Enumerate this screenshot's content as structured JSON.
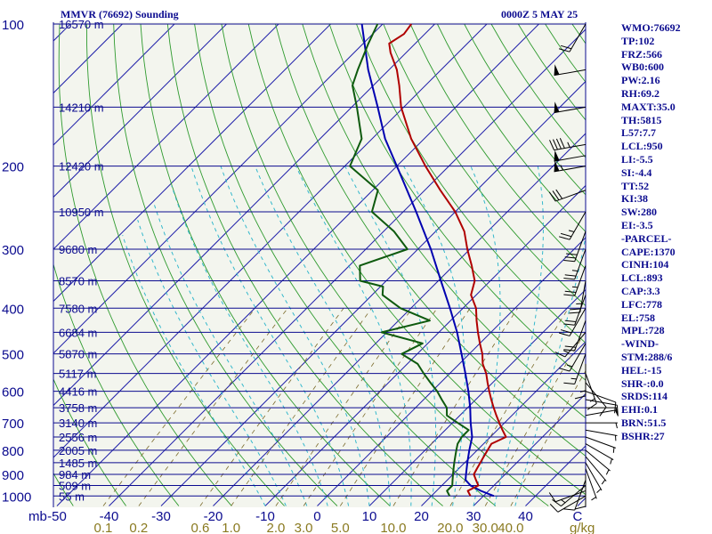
{
  "header": {
    "station": "MMVR (76692) Sounding",
    "time": "0000Z  5 MAY 25"
  },
  "indices": [
    "WMO:76692",
    "TP:102",
    "FRZ:566",
    "WB0:600",
    "PW:2.16",
    "RH:69.2",
    "MAXT:35.0",
    "TH:5815",
    "L57:7.7",
    "LCL:950",
    "LI:-5.5",
    "SI:-4.4",
    "TT:52",
    "KI:38",
    "SW:280",
    "EI:-3.5",
    "-PARCEL-",
    "CAPE:1370",
    "CINH:104",
    "LCL:893",
    "CAP:3.3",
    "LFC:778",
    "EL:758",
    "MPL:728",
    "-WIND-",
    "STM:288/6",
    "HEL:-15",
    "SHR-:0.0",
    "SRDS:114",
    "EHI:0.1",
    "BRN:51.5",
    "BSHR:27"
  ],
  "colors": {
    "text": "#0b0b8f",
    "isobar": "#0b0b8f",
    "isotherm": "#2222aa",
    "dry_adiabat": "#2e9a2e",
    "moist_adiabat": "#34b8cc",
    "mixing_ratio": "#7a6a2a",
    "mixing_label": "#8a7a20",
    "temperature": "#b00000",
    "dewpoint": "#0e5a0e",
    "parcel": "#0000b0",
    "background": "#f3f5ee",
    "wind": "#000000"
  },
  "chart_data": {
    "type": "skew-t",
    "pressure_ticks": [
      100,
      200,
      300,
      400,
      500,
      600,
      700,
      800,
      900,
      1000
    ],
    "height_labels": [
      {
        "p": 100,
        "h": "16570 m"
      },
      {
        "p": 150,
        "h": "14210 m"
      },
      {
        "p": 200,
        "h": "12420 m"
      },
      {
        "p": 250,
        "h": "10950 m"
      },
      {
        "p": 300,
        "h": "9680 m"
      },
      {
        "p": 350,
        "h": "8570 m"
      },
      {
        "p": 400,
        "h": "7580 m"
      },
      {
        "p": 450,
        "h": "6684 m"
      },
      {
        "p": 500,
        "h": "5870 m"
      },
      {
        "p": 550,
        "h": "5117 m"
      },
      {
        "p": 600,
        "h": "4416 m"
      },
      {
        "p": 650,
        "h": "3758 m"
      },
      {
        "p": 700,
        "h": "3140 m"
      },
      {
        "p": 750,
        "h": "2556 m"
      },
      {
        "p": 800,
        "h": "2005 m"
      },
      {
        "p": 850,
        "h": "1485 m"
      },
      {
        "p": 900,
        "h": "984 m"
      },
      {
        "p": 950,
        "h": "509 m"
      },
      {
        "p": 1000,
        "h": "55 m"
      }
    ],
    "xunit_left": "mb",
    "xunit_right": "g/kg",
    "temp_ticks": [
      "-50",
      "-40",
      "-30",
      "-20",
      "-10",
      "0",
      "10",
      "20",
      "30",
      "40",
      "C"
    ],
    "mixing_ratio_labels": [
      "0.1",
      "0.2",
      "0.6",
      "1.0",
      "2.0",
      "3.0",
      "5.0",
      "10.0",
      "20.0",
      "30.0",
      "40.0"
    ],
    "mixing_ratio_values": [
      0.1,
      0.2,
      0.6,
      1.0,
      2.0,
      3.0,
      5.0,
      10.0,
      20.0,
      30.0,
      40.0
    ],
    "temperature": [
      [
        1000,
        27.5
      ],
      [
        975,
        26.0
      ],
      [
        950,
        27.0
      ],
      [
        925,
        25.5
      ],
      [
        900,
        24.0
      ],
      [
        875,
        23.5
      ],
      [
        850,
        23.0
      ],
      [
        825,
        22.5
      ],
      [
        800,
        22.0
      ],
      [
        775,
        21.5
      ],
      [
        750,
        23.0
      ],
      [
        725,
        21.0
      ],
      [
        700,
        19.0
      ],
      [
        675,
        17.0
      ],
      [
        650,
        15.0
      ],
      [
        625,
        13.0
      ],
      [
        600,
        11.0
      ],
      [
        575,
        9.0
      ],
      [
        550,
        7.0
      ],
      [
        525,
        4.5
      ],
      [
        500,
        2.5
      ],
      [
        475,
        0.0
      ],
      [
        450,
        -2.5
      ],
      [
        425,
        -5.0
      ],
      [
        400,
        -7.5
      ],
      [
        375,
        -11.0
      ],
      [
        350,
        -13.0
      ],
      [
        325,
        -16.5
      ],
      [
        300,
        -20.5
      ],
      [
        275,
        -24.5
      ],
      [
        250,
        -30.0
      ],
      [
        225,
        -37.0
      ],
      [
        200,
        -44.5
      ],
      [
        175,
        -52.5
      ],
      [
        150,
        -60.5
      ],
      [
        135,
        -65.0
      ],
      [
        125,
        -68.5
      ],
      [
        115,
        -73.0
      ],
      [
        110,
        -75.0
      ],
      [
        105,
        -74.0
      ],
      [
        100,
        -74.5
      ]
    ],
    "dewpoint": [
      [
        1000,
        23.5
      ],
      [
        975,
        22.0
      ],
      [
        950,
        22.0
      ],
      [
        925,
        21.0
      ],
      [
        900,
        20.0
      ],
      [
        875,
        19.0
      ],
      [
        850,
        18.0
      ],
      [
        825,
        17.0
      ],
      [
        800,
        16.0
      ],
      [
        775,
        15.0
      ],
      [
        750,
        14.5
      ],
      [
        725,
        14.5
      ],
      [
        700,
        11.0
      ],
      [
        675,
        7.5
      ],
      [
        650,
        6.0
      ],
      [
        625,
        3.5
      ],
      [
        600,
        1.0
      ],
      [
        575,
        -2.0
      ],
      [
        550,
        -5.0
      ],
      [
        525,
        -8.0
      ],
      [
        500,
        -13.0
      ],
      [
        475,
        -11.0
      ],
      [
        450,
        -21.0
      ],
      [
        425,
        -14.0
      ],
      [
        400,
        -22.0
      ],
      [
        375,
        -28.0
      ],
      [
        360,
        -29.5
      ],
      [
        350,
        -35.0
      ],
      [
        325,
        -38.0
      ],
      [
        300,
        -32.0
      ],
      [
        275,
        -38.0
      ],
      [
        250,
        -46.0
      ],
      [
        225,
        -49.0
      ],
      [
        200,
        -59.0
      ],
      [
        175,
        -62.0
      ],
      [
        150,
        -69.0
      ],
      [
        135,
        -74.0
      ],
      [
        125,
        -76.0
      ],
      [
        110,
        -79.0
      ],
      [
        100,
        -81.0
      ]
    ],
    "parcel": [
      [
        1000,
        32.0
      ],
      [
        975,
        28.5
      ],
      [
        950,
        25.5
      ],
      [
        925,
        23.5
      ],
      [
        900,
        22.5
      ],
      [
        850,
        20.5
      ],
      [
        800,
        18.5
      ],
      [
        750,
        16.5
      ],
      [
        700,
        13.5
      ],
      [
        650,
        10.5
      ],
      [
        600,
        7.0
      ],
      [
        550,
        3.0
      ],
      [
        500,
        -1.5
      ],
      [
        450,
        -6.5
      ],
      [
        400,
        -12.5
      ],
      [
        350,
        -19.5
      ],
      [
        300,
        -27.5
      ],
      [
        250,
        -37.5
      ],
      [
        200,
        -50.0
      ],
      [
        175,
        -57.5
      ],
      [
        150,
        -65.0
      ],
      [
        125,
        -74.0
      ],
      [
        100,
        -84.0
      ]
    ],
    "wind_barbs": [
      {
        "p": 1000,
        "dir": 240,
        "spd": 10
      },
      {
        "p": 975,
        "dir": 250,
        "spd": 10
      },
      {
        "p": 950,
        "dir": 230,
        "spd": 15
      },
      {
        "p": 925,
        "dir": 200,
        "spd": 10
      },
      {
        "p": 900,
        "dir": 180,
        "spd": 10
      },
      {
        "p": 875,
        "dir": 160,
        "spd": 5
      },
      {
        "p": 850,
        "dir": 150,
        "spd": 5
      },
      {
        "p": 825,
        "dir": 140,
        "spd": 5
      },
      {
        "p": 800,
        "dir": 130,
        "spd": 5
      },
      {
        "p": 775,
        "dir": 120,
        "spd": 5
      },
      {
        "p": 750,
        "dir": 110,
        "spd": 5
      },
      {
        "p": 725,
        "dir": 100,
        "spd": 5
      },
      {
        "p": 700,
        "dir": 90,
        "spd": 5
      },
      {
        "p": 675,
        "dir": 80,
        "spd": 5
      },
      {
        "p": 650,
        "dir": 90,
        "spd": 5
      },
      {
        "p": 625,
        "dir": 100,
        "spd": 10
      },
      {
        "p": 600,
        "dir": 110,
        "spd": 10
      },
      {
        "p": 575,
        "dir": 140,
        "spd": 10
      },
      {
        "p": 550,
        "dir": 160,
        "spd": 15
      },
      {
        "p": 525,
        "dir": 180,
        "spd": 15
      },
      {
        "p": 500,
        "dir": 200,
        "spd": 15
      },
      {
        "p": 475,
        "dir": 210,
        "spd": 15
      },
      {
        "p": 450,
        "dir": 220,
        "spd": 15
      },
      {
        "p": 425,
        "dir": 200,
        "spd": 20
      },
      {
        "p": 400,
        "dir": 210,
        "spd": 20
      },
      {
        "p": 375,
        "dir": 200,
        "spd": 20
      },
      {
        "p": 350,
        "dir": 190,
        "spd": 25
      },
      {
        "p": 325,
        "dir": 200,
        "spd": 25
      },
      {
        "p": 300,
        "dir": 200,
        "spd": 25
      },
      {
        "p": 275,
        "dir": 200,
        "spd": 30
      },
      {
        "p": 250,
        "dir": 210,
        "spd": 25
      },
      {
        "p": 225,
        "dir": 250,
        "spd": 30
      },
      {
        "p": 200,
        "dir": 260,
        "spd": 55
      },
      {
        "p": 190,
        "dir": 260,
        "spd": 50
      },
      {
        "p": 180,
        "dir": 260,
        "spd": 45
      },
      {
        "p": 150,
        "dir": 260,
        "spd": 50
      },
      {
        "p": 125,
        "dir": 260,
        "spd": 50
      },
      {
        "p": 100,
        "dir": 210,
        "spd": 20
      }
    ],
    "temp_range": [
      -50,
      50
    ],
    "pressure_range": [
      100,
      1050
    ],
    "skew": "isotherms slanted 45 degrees",
    "grid": true
  }
}
